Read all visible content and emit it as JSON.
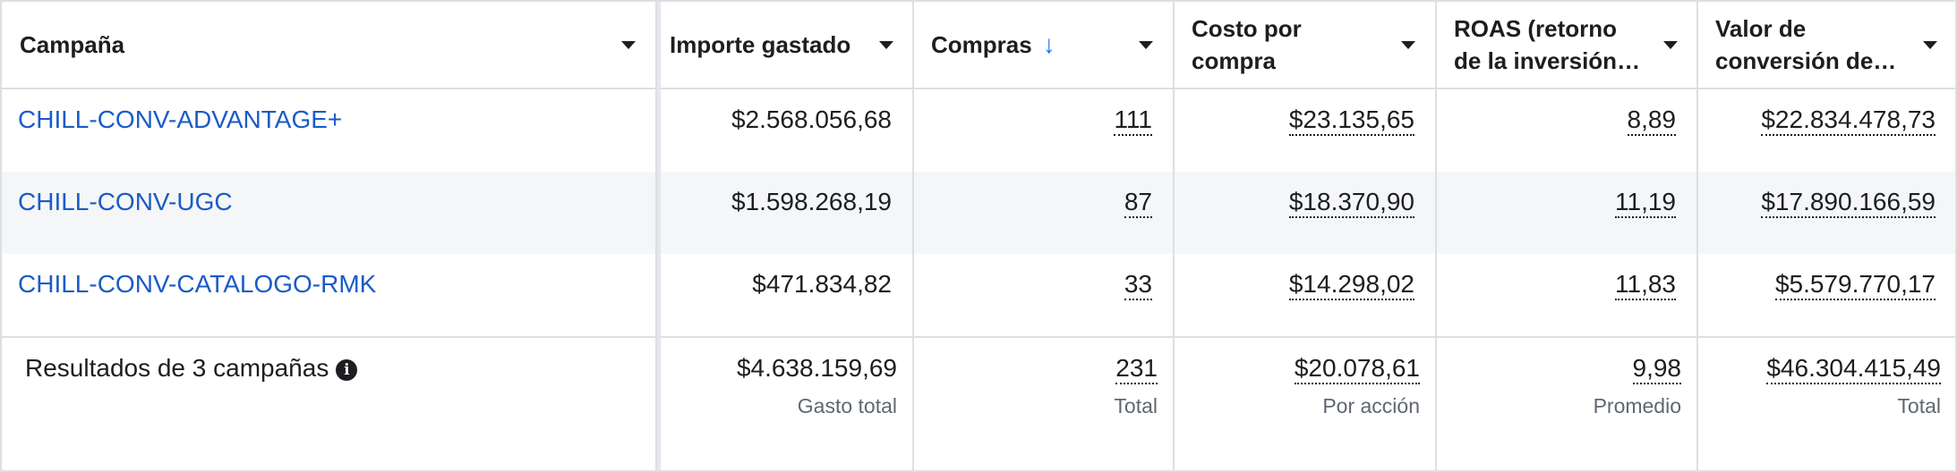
{
  "columns": [
    {
      "label": "Campaña"
    },
    {
      "label": "Importe gastado"
    },
    {
      "label": "Compras",
      "sort_icon": "arrow-down-icon"
    },
    {
      "label_line1": "Costo por",
      "label_line2": "compra"
    },
    {
      "label_line1": "ROAS (retorno",
      "label_line2": "de la inversión…"
    },
    {
      "label_line1": "Valor de",
      "label_line2": "conversión de…"
    }
  ],
  "rows": [
    {
      "campaign": "CHILL-CONV-ADVANTAGE+",
      "spent": "$2.568.056,68",
      "purchases": "111",
      "cost_per_purchase": "$23.135,65",
      "roas": "8,89",
      "conversion_value": "$22.834.478,73"
    },
    {
      "campaign": "CHILL-CONV-UGC",
      "spent": "$1.598.268,19",
      "purchases": "87",
      "cost_per_purchase": "$18.370,90",
      "roas": "11,19",
      "conversion_value": "$17.890.166,59"
    },
    {
      "campaign": "CHILL-CONV-CATALOGO-RMK",
      "spent": "$471.834,82",
      "purchases": "33",
      "cost_per_purchase": "$14.298,02",
      "roas": "11,83",
      "conversion_value": "$5.579.770,17"
    }
  ],
  "summary": {
    "label": "Resultados de 3 campañas",
    "info_icon": "info-icon",
    "spent": "$4.638.159,69",
    "spent_sub": "Gasto total",
    "purchases": "231",
    "purchases_sub": "Total",
    "cost_per_purchase": "$20.078,61",
    "cost_per_purchase_sub": "Por acción",
    "roas": "9,98",
    "roas_sub": "Promedio",
    "conversion_value": "$46.304.415,49",
    "conversion_value_sub": "Total"
  },
  "colors": {
    "link": "#1b5bc7",
    "sort_arrow": "#1877f2",
    "alt_row": "#f5f6f7",
    "border": "#dddfe2"
  }
}
